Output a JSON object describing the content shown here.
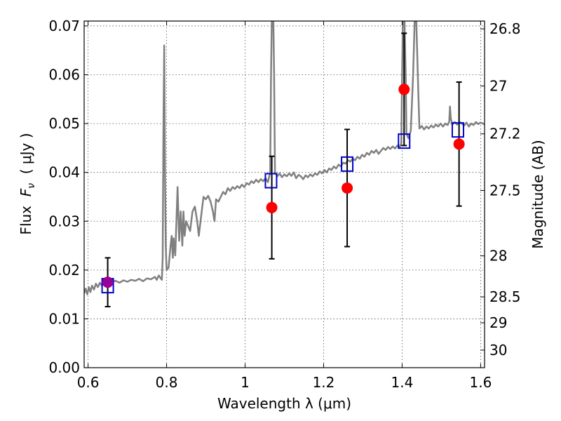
{
  "chart_data": {
    "type": "line",
    "xlabel": "Wavelength  λ (μm)",
    "ylabel": "Flux  F_ν  ( μJy )",
    "ylabel_parts": {
      "prefix": "Flux  ",
      "symbol": "F",
      "subscript": "ν",
      "suffix": "  ( μJy )"
    },
    "y2label": "Magnitude (AB)",
    "xlim": [
      0.59,
      1.61
    ],
    "ylim": [
      0.0,
      0.071
    ],
    "grid": true,
    "x_ticks": [
      {
        "value": 0.6,
        "label": "0.6"
      },
      {
        "value": 0.8,
        "label": "0.8"
      },
      {
        "value": 1.0,
        "label": "1"
      },
      {
        "value": 1.2,
        "label": "1.2"
      },
      {
        "value": 1.4,
        "label": "1.4"
      },
      {
        "value": 1.6,
        "label": "1.6"
      }
    ],
    "y_ticks": [
      {
        "value": 0.0,
        "label": "0.00"
      },
      {
        "value": 0.01,
        "label": "0.01"
      },
      {
        "value": 0.02,
        "label": "0.02"
      },
      {
        "value": 0.03,
        "label": "0.03"
      },
      {
        "value": 0.04,
        "label": "0.04"
      },
      {
        "value": 0.05,
        "label": "0.05"
      },
      {
        "value": 0.06,
        "label": "0.06"
      },
      {
        "value": 0.07,
        "label": "0.07"
      }
    ],
    "y2_ticks": [
      {
        "flux": 0.0694,
        "label": "26.8"
      },
      {
        "flux": 0.0577,
        "label": "27"
      },
      {
        "flux": 0.0479,
        "label": "27.2"
      },
      {
        "flux": 0.0363,
        "label": "27.5"
      },
      {
        "flux": 0.0229,
        "label": "28"
      },
      {
        "flux": 0.0145,
        "label": "28.5"
      },
      {
        "flux": 0.0092,
        "label": "29"
      },
      {
        "flux": 0.0036,
        "label": "30"
      }
    ],
    "series": [
      {
        "role": "model-spectrum",
        "color": "#808080",
        "points": [
          [
            0.59,
            0.0152
          ],
          [
            0.594,
            0.0162
          ],
          [
            0.598,
            0.015
          ],
          [
            0.602,
            0.0165
          ],
          [
            0.606,
            0.0155
          ],
          [
            0.61,
            0.0168
          ],
          [
            0.615,
            0.016
          ],
          [
            0.62,
            0.0172
          ],
          [
            0.625,
            0.0165
          ],
          [
            0.63,
            0.0174
          ],
          [
            0.635,
            0.0168
          ],
          [
            0.64,
            0.0176
          ],
          [
            0.65,
            0.0172
          ],
          [
            0.66,
            0.0175
          ],
          [
            0.67,
            0.0178
          ],
          [
            0.68,
            0.0174
          ],
          [
            0.69,
            0.0179
          ],
          [
            0.7,
            0.0176
          ],
          [
            0.71,
            0.018
          ],
          [
            0.72,
            0.0178
          ],
          [
            0.73,
            0.0182
          ],
          [
            0.74,
            0.0177
          ],
          [
            0.75,
            0.0183
          ],
          [
            0.76,
            0.0181
          ],
          [
            0.77,
            0.0186
          ],
          [
            0.775,
            0.018
          ],
          [
            0.78,
            0.0189
          ],
          [
            0.785,
            0.0183
          ],
          [
            0.788,
            0.018
          ],
          [
            0.79,
            0.0225
          ],
          [
            0.792,
            0.05
          ],
          [
            0.794,
            0.066
          ],
          [
            0.796,
            0.04
          ],
          [
            0.798,
            0.025
          ],
          [
            0.8,
            0.02
          ],
          [
            0.805,
            0.0205
          ],
          [
            0.81,
            0.025
          ],
          [
            0.813,
            0.027
          ],
          [
            0.816,
            0.0225
          ],
          [
            0.818,
            0.0265
          ],
          [
            0.822,
            0.023
          ],
          [
            0.825,
            0.03
          ],
          [
            0.828,
            0.037
          ],
          [
            0.832,
            0.026
          ],
          [
            0.836,
            0.032
          ],
          [
            0.84,
            0.025
          ],
          [
            0.843,
            0.032
          ],
          [
            0.846,
            0.027
          ],
          [
            0.85,
            0.03
          ],
          [
            0.855,
            0.029
          ],
          [
            0.86,
            0.028
          ],
          [
            0.866,
            0.032
          ],
          [
            0.872,
            0.033
          ],
          [
            0.878,
            0.03
          ],
          [
            0.882,
            0.027
          ],
          [
            0.888,
            0.031
          ],
          [
            0.894,
            0.035
          ],
          [
            0.9,
            0.0345
          ],
          [
            0.906,
            0.0352
          ],
          [
            0.912,
            0.034
          ],
          [
            0.918,
            0.032
          ],
          [
            0.922,
            0.03
          ],
          [
            0.926,
            0.0345
          ],
          [
            0.932,
            0.034
          ],
          [
            0.938,
            0.035
          ],
          [
            0.944,
            0.036
          ],
          [
            0.95,
            0.0355
          ],
          [
            0.956,
            0.0368
          ],
          [
            0.962,
            0.0362
          ],
          [
            0.968,
            0.037
          ],
          [
            0.974,
            0.0366
          ],
          [
            0.98,
            0.0372
          ],
          [
            0.986,
            0.0368
          ],
          [
            0.992,
            0.0375
          ],
          [
            0.998,
            0.037
          ],
          [
            1.004,
            0.0378
          ],
          [
            1.01,
            0.0375
          ],
          [
            1.016,
            0.0382
          ],
          [
            1.022,
            0.0378
          ],
          [
            1.028,
            0.0385
          ],
          [
            1.034,
            0.038
          ],
          [
            1.04,
            0.0386
          ],
          [
            1.046,
            0.0382
          ],
          [
            1.052,
            0.0388
          ],
          [
            1.058,
            0.038
          ],
          [
            1.064,
            0.04
          ],
          [
            1.066,
            0.06
          ],
          [
            1.068,
            0.0715
          ],
          [
            1.072,
            0.0715
          ],
          [
            1.074,
            0.06
          ],
          [
            1.076,
            0.04
          ],
          [
            1.082,
            0.0392
          ],
          [
            1.088,
            0.0398
          ],
          [
            1.094,
            0.039
          ],
          [
            1.1,
            0.0396
          ],
          [
            1.106,
            0.0392
          ],
          [
            1.112,
            0.0398
          ],
          [
            1.118,
            0.0393
          ],
          [
            1.124,
            0.04
          ],
          [
            1.13,
            0.0388
          ],
          [
            1.136,
            0.0395
          ],
          [
            1.142,
            0.0392
          ],
          [
            1.148,
            0.0386
          ],
          [
            1.154,
            0.0394
          ],
          [
            1.16,
            0.039
          ],
          [
            1.166,
            0.0396
          ],
          [
            1.172,
            0.0392
          ],
          [
            1.178,
            0.0398
          ],
          [
            1.184,
            0.0395
          ],
          [
            1.19,
            0.0402
          ],
          [
            1.196,
            0.0398
          ],
          [
            1.202,
            0.0405
          ],
          [
            1.208,
            0.04
          ],
          [
            1.214,
            0.0408
          ],
          [
            1.22,
            0.0405
          ],
          [
            1.226,
            0.0412
          ],
          [
            1.232,
            0.0408
          ],
          [
            1.238,
            0.0416
          ],
          [
            1.244,
            0.0412
          ],
          [
            1.25,
            0.042
          ],
          [
            1.256,
            0.0418
          ],
          [
            1.262,
            0.0425
          ],
          [
            1.268,
            0.0422
          ],
          [
            1.274,
            0.0428
          ],
          [
            1.28,
            0.0425
          ],
          [
            1.286,
            0.0432
          ],
          [
            1.292,
            0.0428
          ],
          [
            1.298,
            0.0436
          ],
          [
            1.304,
            0.0432
          ],
          [
            1.31,
            0.044
          ],
          [
            1.316,
            0.0436
          ],
          [
            1.322,
            0.0444
          ],
          [
            1.328,
            0.044
          ],
          [
            1.334,
            0.0446
          ],
          [
            1.34,
            0.0438
          ],
          [
            1.346,
            0.0444
          ],
          [
            1.352,
            0.045
          ],
          [
            1.358,
            0.0446
          ],
          [
            1.364,
            0.0452
          ],
          [
            1.37,
            0.0448
          ],
          [
            1.376,
            0.0453
          ],
          [
            1.382,
            0.0449
          ],
          [
            1.388,
            0.0455
          ],
          [
            1.394,
            0.0452
          ],
          [
            1.398,
            0.046
          ],
          [
            1.4,
            0.06
          ],
          [
            1.402,
            0.0715
          ],
          [
            1.406,
            0.0715
          ],
          [
            1.409,
            0.06
          ],
          [
            1.411,
            0.048
          ],
          [
            1.416,
            0.047
          ],
          [
            1.422,
            0.0485
          ],
          [
            1.428,
            0.06
          ],
          [
            1.432,
            0.0715
          ],
          [
            1.436,
            0.0715
          ],
          [
            1.44,
            0.06
          ],
          [
            1.444,
            0.049
          ],
          [
            1.45,
            0.0495
          ],
          [
            1.456,
            0.0488
          ],
          [
            1.462,
            0.0494
          ],
          [
            1.468,
            0.049
          ],
          [
            1.474,
            0.0496
          ],
          [
            1.48,
            0.0492
          ],
          [
            1.486,
            0.0498
          ],
          [
            1.492,
            0.0494
          ],
          [
            1.498,
            0.05
          ],
          [
            1.504,
            0.0494
          ],
          [
            1.51,
            0.05
          ],
          [
            1.516,
            0.0497
          ],
          [
            1.52,
            0.0504
          ],
          [
            1.522,
            0.0535
          ],
          [
            1.524,
            0.051
          ],
          [
            1.528,
            0.0498
          ],
          [
            1.534,
            0.0503
          ],
          [
            1.54,
            0.0498
          ],
          [
            1.546,
            0.0503
          ],
          [
            1.552,
            0.05
          ],
          [
            1.558,
            0.0496
          ],
          [
            1.564,
            0.0502
          ],
          [
            1.57,
            0.0494
          ],
          [
            1.576,
            0.05
          ],
          [
            1.582,
            0.0497
          ],
          [
            1.588,
            0.0503
          ],
          [
            1.594,
            0.0499
          ],
          [
            1.6,
            0.0502
          ],
          [
            1.606,
            0.05
          ],
          [
            1.61,
            0.0498
          ]
        ]
      },
      {
        "role": "model-photometry",
        "marker": "open-square",
        "color": "#0000cc",
        "points": [
          [
            0.65,
            0.0168
          ],
          [
            1.066,
            0.0383
          ],
          [
            1.26,
            0.0417
          ],
          [
            1.405,
            0.0464
          ],
          [
            1.542,
            0.0487
          ]
        ]
      },
      {
        "role": "observed-photometry",
        "marker": "filled-circle",
        "color": "#ff0000",
        "points": [
          {
            "x": 0.65,
            "y": 0.0175,
            "err": 0.005,
            "color": "#990099"
          },
          {
            "x": 1.068,
            "y": 0.0328,
            "err": 0.0105,
            "color": "#ff0000"
          },
          {
            "x": 1.26,
            "y": 0.0368,
            "err": 0.012,
            "color": "#ff0000"
          },
          {
            "x": 1.405,
            "y": 0.057,
            "err": 0.0115,
            "color": "#ff0000"
          },
          {
            "x": 1.545,
            "y": 0.0458,
            "err": 0.0127,
            "color": "#ff0000"
          }
        ]
      }
    ],
    "colors": {
      "spectrum": "#808080",
      "model_photometry": "#0000cc",
      "observed": "#ff0000",
      "observed_blended": "#990099",
      "errorbar": "#000000",
      "grid": "#555555"
    }
  }
}
